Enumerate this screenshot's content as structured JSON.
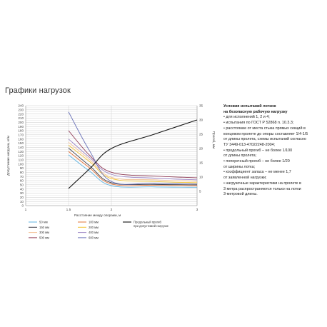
{
  "heading": "Графики нагрузок",
  "chart_data": {
    "type": "line",
    "x": [
      1.5,
      1.75,
      2,
      2.5,
      3
    ],
    "xlim": [
      1,
      3
    ],
    "x_ticks": [
      "1",
      "1.5",
      "2",
      "3"
    ],
    "xlabel": "Расстояние между опорами, м",
    "y_left": {
      "label": "Допустимая нагрузка, кг/м",
      "lim": [
        0,
        240
      ],
      "ticks": [
        0,
        10,
        20,
        30,
        40,
        50,
        60,
        70,
        80,
        90,
        100,
        110,
        120,
        130,
        140,
        150,
        160,
        170,
        180,
        190,
        200,
        210,
        220,
        230,
        240
      ]
    },
    "y_right": {
      "label": "Прогиб, мм",
      "lim": [
        0,
        35
      ],
      "ticks": [
        5,
        10,
        15,
        20,
        25,
        30,
        35
      ]
    },
    "grid": true,
    "series": [
      {
        "name": "50 мм",
        "color": "#5fb3e0",
        "axis": "left",
        "values": [
          122,
          82,
          48,
          45,
          44
        ]
      },
      {
        "name": "100 мм",
        "color": "#e2733a",
        "axis": "left",
        "values": [
          130,
          90,
          52,
          49,
          48
        ]
      },
      {
        "name": "150 мм",
        "color": "#3c3c46",
        "axis": "left",
        "values": [
          138,
          95,
          55,
          51,
          50
        ]
      },
      {
        "name": "200 мм",
        "color": "#f2c230",
        "axis": "left",
        "values": [
          145,
          105,
          65,
          58,
          55
        ]
      },
      {
        "name": "300 мм",
        "color": "#f2bf93",
        "axis": "left",
        "values": [
          152,
          110,
          68,
          62,
          58
        ]
      },
      {
        "name": "400 мм",
        "color": "#9d86c4",
        "axis": "left",
        "values": [
          160,
          115,
          75,
          66,
          62
        ]
      },
      {
        "name": "500 мм",
        "color": "#8f3a55",
        "axis": "left",
        "values": [
          180,
          120,
          80,
          71,
          67
        ]
      },
      {
        "name": "600 мм",
        "color": "#6a72b8",
        "axis": "left",
        "values": [
          225,
          130,
          58,
          54,
          52
        ]
      },
      {
        "name": "Продольный прогиб при допустимой нагрузке",
        "color": "#111111",
        "axis": "right",
        "values": [
          6,
          13,
          20,
          25,
          30
        ]
      }
    ],
    "legend": {
      "placement": "bottom"
    }
  },
  "conditions": {
    "title": "Условия испытаний лотков\nна безопасную рабочую нагрузку",
    "items": [
      "• для исполнений 1, 2 и 4;",
      "• испытания по ГОСТ Р 52868 п. 10.3.3;",
      "• расстояние от места стыка прямых секций в\nконцевом пролете до опоры составляет 1/4-1/5\nот длины пролета, схемы испытаний согласно\nТУ 3449-013-47022248-2004;",
      "• продольный прогиб – не более 1/100\nот длины пролета;",
      "• поперечный прогиб – не более 1/20\nот ширины лотка;",
      "• коэффициент запаса – не менее 1,7\nот заявленной нагрузки;",
      "• нагрузочные характеристики на пролете в\n3 метра распространяются только на лотки\n3-метровой длины."
    ]
  }
}
